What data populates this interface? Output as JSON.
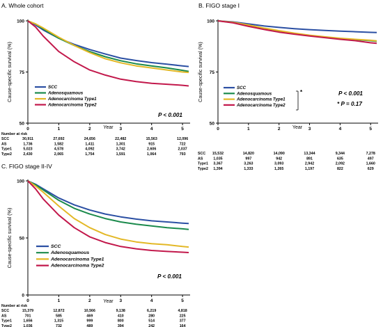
{
  "figure": {
    "colors": {
      "SCC": "#2b4fa3",
      "Adenosquamous": "#1b8a4c",
      "Adenocarcinoma Type1": "#e3b826",
      "Adenocarcinoma Type2": "#c2184b"
    }
  },
  "chart_data": [
    {
      "type": "line",
      "title": "A.  Whole cohort",
      "xlabel": "Year",
      "ylabel": "Cause-specific survival (%)",
      "xlim": [
        0,
        5.2
      ],
      "ylim": [
        50,
        100
      ],
      "xticks": [
        0,
        1,
        2,
        3,
        4,
        5
      ],
      "yticks": [
        50,
        75,
        100
      ],
      "grid": false,
      "legend": "lower-left",
      "p_value": "P < 0.001",
      "series": [
        {
          "name": "SCC",
          "x": [
            0,
            0.25,
            0.5,
            1,
            1.5,
            2,
            2.5,
            3,
            3.5,
            4,
            4.5,
            5,
            5.2
          ],
          "y": [
            100,
            98,
            95.5,
            91.5,
            88.5,
            86,
            83.8,
            81.8,
            80.6,
            79.6,
            78.8,
            78,
            77.7
          ]
        },
        {
          "name": "Adenosquamous",
          "x": [
            0,
            0.25,
            0.5,
            1,
            1.5,
            2,
            2.5,
            3,
            3.5,
            4,
            4.5,
            5,
            5.2
          ],
          "y": [
            100,
            98.5,
            96,
            91.5,
            88,
            85,
            82.5,
            80.5,
            79,
            78,
            77,
            75.8,
            75.3
          ]
        },
        {
          "name": "Adenocarcinoma Type1",
          "x": [
            0,
            0.25,
            0.5,
            1,
            1.5,
            2,
            2.5,
            3,
            3.5,
            4,
            4.5,
            5,
            5.2
          ],
          "y": [
            100,
            98.5,
            96.5,
            92,
            88,
            84.5,
            81.5,
            79.5,
            78,
            77,
            76,
            75,
            74.8
          ]
        },
        {
          "name": "Adenocarcinoma Type2",
          "x": [
            0,
            0.25,
            0.5,
            1,
            1.5,
            2,
            2.5,
            3,
            3.5,
            4,
            4.5,
            5,
            5.2
          ],
          "y": [
            100,
            97,
            92.5,
            85,
            80,
            76,
            73.5,
            71.5,
            70.3,
            69.5,
            69,
            68.5,
            68.2
          ]
        }
      ],
      "risk_table": {
        "header": "Number at risk",
        "rows": [
          {
            "label": "SCC",
            "values": [
              "30,911",
              "27,692",
              "24,656",
              "22,482",
              "15,563",
              "12,096"
            ]
          },
          {
            "label": "AS",
            "values": [
              "1,736",
              "1,582",
              "1,411",
              "1,301",
              "915",
              "722"
            ]
          },
          {
            "label": "Type1",
            "values": [
              "5,023",
              "4,578",
              "4,092",
              "3,742",
              "2,606",
              "2,037"
            ]
          },
          {
            "label": "Type2",
            "values": [
              "2,430",
              "2,065",
              "1,754",
              "1,591",
              "1,064",
              "793"
            ]
          }
        ]
      }
    },
    {
      "type": "line",
      "title": "B.  FIGO stage I",
      "xlabel": "Year",
      "ylabel": "Cause-specific survival (%)",
      "xlim": [
        0,
        5.2
      ],
      "ylim": [
        50,
        100
      ],
      "xticks": [
        0,
        1,
        2,
        3,
        4,
        5
      ],
      "yticks": [
        50,
        75,
        100
      ],
      "grid": false,
      "legend": "lower-left",
      "p_value": "P < 0.001",
      "bracket_mark": "*",
      "p_value_star": "* P = 0.17",
      "series": [
        {
          "name": "SCC",
          "x": [
            0,
            0.5,
            1,
            1.5,
            2,
            2.5,
            3,
            3.5,
            4,
            4.5,
            5,
            5.2
          ],
          "y": [
            100,
            99.5,
            98.5,
            97.5,
            96.8,
            96.2,
            95.7,
            95.3,
            95,
            94.7,
            94.4,
            94.3
          ]
        },
        {
          "name": "Adenosquamous",
          "x": [
            0,
            0.5,
            1,
            1.5,
            2,
            2.5,
            3,
            3.5,
            4,
            4.5,
            5,
            5.2
          ],
          "y": [
            100,
            99.2,
            97.5,
            96,
            94.8,
            93.7,
            92.8,
            92,
            91.3,
            90.8,
            90.3,
            90
          ]
        },
        {
          "name": "Adenocarcinoma Type1",
          "x": [
            0,
            0.5,
            1,
            1.5,
            2,
            2.5,
            3,
            3.5,
            4,
            4.5,
            5,
            5.2
          ],
          "y": [
            100,
            99.3,
            98,
            96.5,
            95.2,
            94,
            93,
            92.2,
            91.5,
            91,
            90.5,
            90.2
          ]
        },
        {
          "name": "Adenocarcinoma Type2",
          "x": [
            0,
            0.5,
            1,
            1.5,
            2,
            2.5,
            3,
            3.5,
            4,
            4.5,
            5,
            5.2
          ],
          "y": [
            100,
            99,
            97.3,
            95.8,
            94.5,
            93.5,
            92.6,
            91.8,
            91,
            90.3,
            89.3,
            89
          ]
        }
      ],
      "risk_table": {
        "header": "",
        "rows": [
          {
            "label": "SCC",
            "values": [
              "15,532",
              "14,820",
              "14,090",
              "13,344",
              "9,344",
              "7,278"
            ]
          },
          {
            "label": "AS",
            "values": [
              "1,035",
              "997",
              "942",
              "891",
              "635",
              "497"
            ]
          },
          {
            "label": "Type1",
            "values": [
              "3,367",
              "3,263",
              "3,093",
              "2,942",
              "2,092",
              "1,660"
            ]
          },
          {
            "label": "Type2",
            "values": [
              "1,394",
              "1,333",
              "1,265",
              "1,197",
              "822",
              "629"
            ]
          }
        ]
      }
    },
    {
      "type": "line",
      "title": "C.  FIGO stage II-IV",
      "xlabel": "Year",
      "ylabel": "Cause-specific survival (%)",
      "xlim": [
        0,
        5.2
      ],
      "ylim": [
        0,
        100
      ],
      "xticks": [
        0,
        1,
        2,
        3,
        4,
        5
      ],
      "yticks": [
        0,
        50,
        100
      ],
      "grid": false,
      "legend": "lower-left",
      "p_value": "P < 0.001",
      "series": [
        {
          "name": "SCC",
          "x": [
            0,
            0.25,
            0.5,
            1,
            1.5,
            2,
            2.5,
            3,
            3.5,
            4,
            4.5,
            5,
            5.2
          ],
          "y": [
            100,
            97,
            93,
            85,
            79,
            74.5,
            71,
            68.5,
            66.5,
            65,
            64,
            63,
            62.7
          ]
        },
        {
          "name": "Adenosquamous",
          "x": [
            0,
            0.25,
            0.5,
            1,
            1.5,
            2,
            2.5,
            3,
            3.5,
            4,
            4.5,
            5,
            5.2
          ],
          "y": [
            100,
            96.5,
            92,
            83,
            76,
            71,
            67,
            64,
            62,
            60.5,
            59,
            58,
            57.5
          ]
        },
        {
          "name": "Adenocarcinoma Type1",
          "x": [
            0,
            0.25,
            0.5,
            1,
            1.5,
            2,
            2.5,
            3,
            3.5,
            4,
            4.5,
            5,
            5.2
          ],
          "y": [
            100,
            95.5,
            90,
            78,
            67,
            59,
            53,
            49,
            46.5,
            45,
            44,
            42.5,
            42
          ]
        },
        {
          "name": "Adenocarcinoma Type2",
          "x": [
            0,
            0.25,
            0.5,
            1,
            1.5,
            2,
            2.5,
            3,
            3.5,
            4,
            4.5,
            5,
            5.2
          ],
          "y": [
            100,
            93,
            84,
            70,
            59,
            51,
            46,
            42.5,
            40.5,
            39,
            38.2,
            37.5,
            37.2
          ]
        }
      ],
      "risk_table": {
        "header": "Number at risk",
        "rows": [
          {
            "label": "SCC",
            "values": [
              "15,379",
              "12,872",
              "10,566",
              "9,138",
              "6,219",
              "4,818"
            ]
          },
          {
            "label": "AS",
            "values": [
              "701",
              "585",
              "469",
              "410",
              "280",
              "225"
            ]
          },
          {
            "label": "Type1",
            "values": [
              "1,656",
              "1,315",
              "999",
              "800",
              "514",
              "377"
            ]
          },
          {
            "label": "Type2",
            "values": [
              "1,036",
              "732",
              "489",
              "394",
              "242",
              "164"
            ]
          }
        ]
      }
    }
  ]
}
